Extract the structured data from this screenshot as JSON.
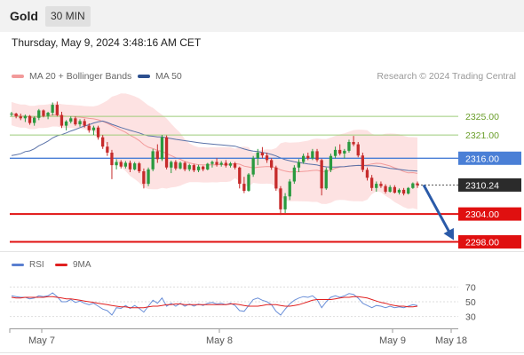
{
  "header": {
    "instrument": "Gold",
    "timeframe": "30 MIN"
  },
  "timestamp": "Thursday, May 9, 2024 3:48:16 AM CET",
  "legend": {
    "ma20_label": "MA 20 + Bollinger Bands",
    "ma50_label": "MA 50",
    "copyright": "Research © 2024 Trading Central"
  },
  "rsi_legend": {
    "rsi_label": "RSI",
    "ma_label": "9MA"
  },
  "colors": {
    "bull": "#2a9a3f",
    "bear": "#c62b2b",
    "ma20": "#f29a9a",
    "ma50": "#5a72a8",
    "band_fill": "#fde2e2",
    "resistance": "#9ecc7a",
    "pivot": "#4a7fd6",
    "support": "#e01010",
    "arrow": "#2a5aa8",
    "rsi": "#6a8fd8",
    "rsi_ma": "#e02020"
  },
  "chart_data": {
    "type": "candlestick",
    "instrument": "Gold",
    "timeframe": "30 MIN",
    "ylim": [
      2296,
      2330
    ],
    "x_tick_labels": [
      "May 7",
      "May 8",
      "May 9",
      "May 18"
    ],
    "levels": [
      {
        "label": "2325.00",
        "value": 2325.0,
        "kind": "resistance"
      },
      {
        "label": "2321.00",
        "value": 2321.0,
        "kind": "resistance"
      },
      {
        "label": "2316.00",
        "value": 2316.0,
        "kind": "pivot"
      },
      {
        "label": "2310.24",
        "value": 2310.24,
        "kind": "last"
      },
      {
        "label": "2304.00",
        "value": 2304.0,
        "kind": "support"
      },
      {
        "label": "2298.00",
        "value": 2298.0,
        "kind": "support"
      }
    ],
    "forecast_arrow": {
      "from": 2310.24,
      "to": 2298.0
    },
    "candles": [
      [
        2325.5,
        2326.0,
        2325.0,
        2325.6
      ],
      [
        2325.6,
        2325.8,
        2324.6,
        2325.0
      ],
      [
        2325.0,
        2325.6,
        2324.2,
        2324.6
      ],
      [
        2324.6,
        2325.4,
        2323.8,
        2325.1
      ],
      [
        2325.1,
        2325.3,
        2323.2,
        2323.6
      ],
      [
        2323.6,
        2325.0,
        2323.0,
        2324.7
      ],
      [
        2324.7,
        2326.6,
        2324.2,
        2326.3
      ],
      [
        2326.3,
        2326.5,
        2324.8,
        2325.1
      ],
      [
        2325.1,
        2326.0,
        2324.4,
        2325.8
      ],
      [
        2325.8,
        2328.0,
        2325.2,
        2327.5
      ],
      [
        2327.5,
        2328.2,
        2325.0,
        2325.3
      ],
      [
        2325.3,
        2326.0,
        2322.5,
        2323.0
      ],
      [
        2323.0,
        2324.2,
        2322.0,
        2323.9
      ],
      [
        2323.9,
        2325.0,
        2323.5,
        2324.6
      ],
      [
        2324.6,
        2325.0,
        2323.0,
        2323.3
      ],
      [
        2323.3,
        2324.4,
        2322.8,
        2324.0
      ],
      [
        2324.0,
        2324.5,
        2322.6,
        2323.0
      ],
      [
        2323.0,
        2323.5,
        2321.5,
        2322.0
      ],
      [
        2322.0,
        2323.0,
        2321.0,
        2322.6
      ],
      [
        2322.6,
        2323.0,
        2320.0,
        2320.5
      ],
      [
        2320.5,
        2321.0,
        2318.0,
        2318.5
      ],
      [
        2318.5,
        2319.5,
        2316.5,
        2317.2
      ],
      [
        2317.2,
        2317.8,
        2311.5,
        2314.5
      ],
      [
        2314.5,
        2315.8,
        2313.6,
        2315.2
      ],
      [
        2315.2,
        2315.6,
        2313.8,
        2314.2
      ],
      [
        2314.2,
        2315.4,
        2313.8,
        2315.0
      ],
      [
        2315.0,
        2315.5,
        2313.0,
        2313.6
      ],
      [
        2313.6,
        2315.2,
        2313.4,
        2314.9
      ],
      [
        2314.9,
        2315.2,
        2312.8,
        2313.2
      ],
      [
        2313.2,
        2313.8,
        2309.5,
        2310.5
      ],
      [
        2310.5,
        2314.0,
        2310.0,
        2313.6
      ],
      [
        2313.6,
        2318.0,
        2313.2,
        2317.5
      ],
      [
        2317.5,
        2319.0,
        2315.0,
        2315.8
      ],
      [
        2315.8,
        2321.0,
        2315.4,
        2320.5
      ],
      [
        2320.5,
        2320.9,
        2313.6,
        2314.0
      ],
      [
        2314.0,
        2315.5,
        2312.8,
        2315.2
      ],
      [
        2315.2,
        2315.6,
        2313.4,
        2313.8
      ],
      [
        2313.8,
        2315.3,
        2313.6,
        2315.0
      ],
      [
        2315.0,
        2315.3,
        2313.2,
        2313.6
      ],
      [
        2313.6,
        2314.8,
        2313.2,
        2314.5
      ],
      [
        2314.5,
        2314.8,
        2313.0,
        2313.4
      ],
      [
        2313.4,
        2314.6,
        2313.0,
        2314.2
      ],
      [
        2314.2,
        2314.4,
        2313.2,
        2313.6
      ],
      [
        2313.6,
        2315.0,
        2313.4,
        2314.8
      ],
      [
        2314.8,
        2315.5,
        2314.0,
        2315.2
      ],
      [
        2315.2,
        2316.0,
        2314.2,
        2314.6
      ],
      [
        2314.6,
        2315.4,
        2314.2,
        2315.0
      ],
      [
        2315.0,
        2315.6,
        2314.0,
        2314.4
      ],
      [
        2314.4,
        2315.2,
        2314.0,
        2314.9
      ],
      [
        2314.9,
        2315.2,
        2313.6,
        2314.0
      ],
      [
        2314.0,
        2314.2,
        2309.5,
        2310.5
      ],
      [
        2310.5,
        2312.0,
        2308.5,
        2309.0
      ],
      [
        2309.0,
        2312.8,
        2308.8,
        2312.5
      ],
      [
        2312.5,
        2316.5,
        2312.0,
        2316.0
      ],
      [
        2316.0,
        2318.0,
        2314.5,
        2317.2
      ],
      [
        2317.2,
        2318.4,
        2316.0,
        2316.6
      ],
      [
        2316.6,
        2317.2,
        2315.0,
        2315.6
      ],
      [
        2315.6,
        2316.0,
        2313.5,
        2314.0
      ],
      [
        2314.0,
        2314.4,
        2309.0,
        2309.5
      ],
      [
        2309.5,
        2310.0,
        2303.8,
        2305.0
      ],
      [
        2305.0,
        2308.5,
        2304.2,
        2307.8
      ],
      [
        2307.8,
        2311.5,
        2307.0,
        2311.0
      ],
      [
        2311.0,
        2314.5,
        2310.5,
        2314.0
      ],
      [
        2314.0,
        2315.8,
        2313.0,
        2315.2
      ],
      [
        2315.2,
        2317.0,
        2314.8,
        2316.5
      ],
      [
        2316.5,
        2317.2,
        2315.6,
        2316.0
      ],
      [
        2316.0,
        2318.0,
        2315.6,
        2317.5
      ],
      [
        2317.5,
        2318.0,
        2315.2,
        2315.6
      ],
      [
        2315.6,
        2315.9,
        2308.0,
        2309.5
      ],
      [
        2309.5,
        2314.0,
        2309.2,
        2313.5
      ],
      [
        2313.5,
        2317.0,
        2313.0,
        2316.5
      ],
      [
        2316.5,
        2318.5,
        2316.0,
        2317.8
      ],
      [
        2317.8,
        2319.0,
        2316.6,
        2317.0
      ],
      [
        2317.0,
        2318.0,
        2316.0,
        2317.6
      ],
      [
        2317.6,
        2320.0,
        2317.2,
        2319.5
      ],
      [
        2319.5,
        2320.8,
        2318.6,
        2319.0
      ],
      [
        2319.0,
        2319.5,
        2316.2,
        2316.6
      ],
      [
        2316.6,
        2317.2,
        2313.0,
        2313.5
      ],
      [
        2313.5,
        2314.0,
        2311.2,
        2311.8
      ],
      [
        2311.8,
        2312.4,
        2309.0,
        2309.6
      ],
      [
        2309.6,
        2311.0,
        2308.8,
        2310.5
      ],
      [
        2310.5,
        2311.0,
        2309.6,
        2310.0
      ],
      [
        2310.0,
        2310.4,
        2308.4,
        2308.8
      ],
      [
        2308.8,
        2310.2,
        2308.6,
        2309.8
      ],
      [
        2309.8,
        2310.2,
        2308.4,
        2308.6
      ],
      [
        2308.6,
        2309.5,
        2308.2,
        2309.2
      ],
      [
        2309.2,
        2309.6,
        2308.0,
        2308.4
      ],
      [
        2308.4,
        2309.8,
        2308.2,
        2309.6
      ],
      [
        2309.6,
        2310.8,
        2309.4,
        2310.6
      ],
      [
        2310.6,
        2311.0,
        2309.6,
        2310.2
      ]
    ],
    "rsi_axis_labels": [
      "70",
      "50",
      "30"
    ],
    "rsi_ylim": [
      20,
      80
    ],
    "rsi": [
      58,
      57,
      56,
      56,
      54,
      55,
      58,
      57,
      58,
      62,
      57,
      50,
      50,
      53,
      49,
      51,
      48,
      46,
      48,
      44,
      40,
      38,
      32,
      42,
      41,
      45,
      41,
      45,
      41,
      36,
      44,
      52,
      48,
      55,
      44,
      48,
      44,
      48,
      44,
      47,
      44,
      47,
      45,
      48,
      49,
      47,
      48,
      46,
      48,
      45,
      38,
      37,
      45,
      53,
      55,
      52,
      50,
      46,
      37,
      32,
      40,
      47,
      52,
      55,
      57,
      56,
      58,
      53,
      42,
      50,
      56,
      58,
      56,
      58,
      61,
      60,
      55,
      48,
      45,
      42,
      45,
      44,
      42,
      44,
      42,
      43,
      42,
      44,
      46,
      45
    ],
    "rsi_ma": [
      56,
      55,
      55,
      56,
      56,
      56,
      56,
      56,
      57,
      57,
      56,
      55,
      54,
      54,
      53,
      52,
      51,
      50,
      49,
      48,
      47,
      46,
      45,
      44,
      43,
      43,
      42,
      42,
      42,
      42,
      43,
      44,
      44,
      45,
      46,
      46,
      47,
      47,
      46,
      46,
      46,
      46,
      46,
      46,
      46,
      46,
      46,
      46,
      47,
      47,
      46,
      45,
      44,
      44,
      44,
      45,
      46,
      46,
      46,
      45,
      44,
      44,
      45,
      46,
      48,
      50,
      52,
      53,
      53,
      53,
      53,
      54,
      55,
      56,
      56,
      57,
      57,
      56,
      55,
      53,
      51,
      49,
      48,
      46,
      45,
      44,
      44,
      43,
      43,
      44
    ]
  }
}
